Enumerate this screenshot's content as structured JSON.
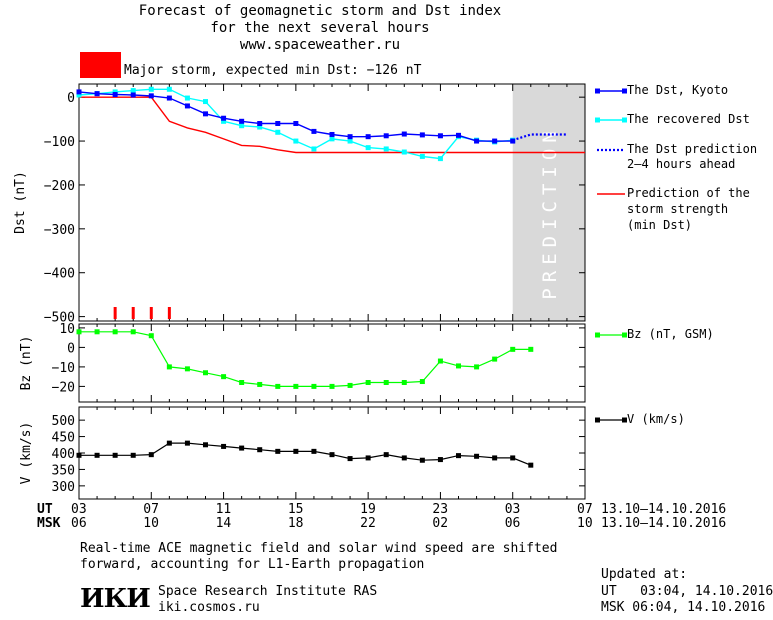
{
  "header": {
    "title_line1": "Forecast of geomagnetic storm and Dst index",
    "title_line2": "for the next several hours",
    "url": "www.spaceweather.ru",
    "storm_label": "Major storm, expected min Dst: −126 nT",
    "storm_color": "#ff0000"
  },
  "legend": {
    "dst_kyoto": "The Dst, Kyoto",
    "recovered": "The recovered Dst",
    "prediction_line1": "The Dst prediction",
    "prediction_line2": "2–4 hours ahead",
    "strength_line1": "Prediction of the",
    "strength_line2": "storm strength",
    "strength_line3": "(min Dst)",
    "bz": "Bz (nT, GSM)",
    "v": "V (km/s)"
  },
  "colors": {
    "dst": "#0000ff",
    "recovered": "#00ffff",
    "prediction": "#0000ff",
    "strength": "#ff0000",
    "bz": "#00ff00",
    "v": "#000000",
    "prediction_shade": "#d9d9d9",
    "prediction_text": "#ffffff"
  },
  "prediction_label": "PREDICTION",
  "time_axis": {
    "ut_label": "UT",
    "msk_label": "MSK",
    "ut_ticks": [
      "03",
      "07",
      "11",
      "15",
      "19",
      "23",
      "03",
      "07"
    ],
    "msk_ticks": [
      "06",
      "10",
      "14",
      "18",
      "22",
      "02",
      "06",
      "10"
    ],
    "date_range_ut": "13.10–14.10.2016",
    "date_range_msk": "13.10–14.10.2016"
  },
  "footer": {
    "note_line1": "Real-time ACE magnetic field and solar wind speed are shifted",
    "note_line2": "forward, accounting for L1-Earth propagation",
    "logo": "ИКИ",
    "institute": "Space Research Institute RAS",
    "site": "iki.cosmos.ru",
    "updated_label": "Updated at:",
    "updated_ut": "UT   03:04, 14.10.2016",
    "updated_msk": "MSK 06:04, 14.10.2016"
  },
  "chart_data": [
    {
      "type": "line",
      "ylabel": "Dst (nT)",
      "x_unit": "hours UT from 03:00 13.10.2016",
      "ylim": [
        -510,
        30
      ],
      "yticks": [
        0,
        -100,
        -200,
        -300,
        -400,
        -500
      ],
      "xlim": [
        0,
        28
      ],
      "prediction_start_x": 24,
      "series": [
        {
          "name": "The Dst, Kyoto",
          "x": [
            0,
            1,
            2,
            3,
            4,
            5,
            6,
            7,
            8,
            9,
            10,
            11,
            12,
            13,
            14,
            15,
            16,
            17,
            18,
            19,
            20,
            21,
            22,
            23,
            24
          ],
          "values": [
            12,
            8,
            6,
            5,
            3,
            -2,
            -20,
            -38,
            -48,
            -55,
            -60,
            -60,
            -60,
            -78,
            -85,
            -90,
            -90,
            -88,
            -84,
            -86,
            -88,
            -87,
            -100,
            -100,
            -100
          ]
        },
        {
          "name": "The recovered Dst",
          "x": [
            0,
            1,
            2,
            3,
            4,
            5,
            6,
            7,
            8,
            9,
            10,
            11,
            12,
            13,
            14,
            15,
            16,
            17,
            18,
            19,
            20,
            21,
            22,
            23,
            24
          ],
          "values": [
            5,
            8,
            12,
            15,
            18,
            18,
            -2,
            -10,
            -55,
            -65,
            -68,
            -80,
            -100,
            -118,
            -95,
            -100,
            -115,
            -118,
            -125,
            -135,
            -140,
            -90,
            -98,
            -102,
            -98
          ]
        },
        {
          "name": "The Dst prediction 2–4 hours ahead",
          "x": [
            24,
            25,
            26,
            27
          ],
          "values": [
            -98,
            -85,
            -85,
            -85
          ]
        },
        {
          "name": "Prediction of the storm strength (min Dst)",
          "x": [
            0,
            1,
            2,
            3,
            4,
            5,
            6,
            7,
            8,
            9,
            10,
            11,
            12,
            13,
            14,
            15,
            16,
            17,
            18,
            19,
            20,
            21,
            22,
            23,
            24,
            25,
            26,
            27,
            28
          ],
          "values": [
            0,
            0,
            0,
            0,
            0,
            -55,
            -70,
            -80,
            -95,
            -110,
            -112,
            -120,
            -126,
            -126,
            -126,
            -126,
            -126,
            -126,
            -126,
            -126,
            -126,
            -126,
            -126,
            -126,
            -126,
            -126,
            -126,
            -126,
            -126
          ]
        }
      ],
      "storm_markers_x": [
        2,
        3,
        4,
        5
      ]
    },
    {
      "type": "line",
      "ylabel": "Bz (nT)",
      "ylim": [
        -28,
        12
      ],
      "yticks": [
        10,
        0,
        -10,
        -20
      ],
      "xlim": [
        0,
        28
      ],
      "series": [
        {
          "name": "Bz (nT, GSM)",
          "x": [
            0,
            1,
            2,
            3,
            4,
            5,
            6,
            7,
            8,
            9,
            10,
            11,
            12,
            13,
            14,
            15,
            16,
            17,
            18,
            19,
            20,
            21,
            22,
            23,
            24,
            25
          ],
          "values": [
            8,
            8,
            8,
            8,
            6,
            -10,
            -11,
            -13,
            -15,
            -18,
            -19,
            -20,
            -20,
            -20,
            -20,
            -19.5,
            -18,
            -18,
            -18,
            -17.5,
            -7,
            -9.5,
            -10,
            -6,
            -1,
            -1
          ]
        }
      ]
    },
    {
      "type": "line",
      "ylabel": "V (km/s)",
      "ylim": [
        260,
        540
      ],
      "yticks": [
        500,
        450,
        400,
        350,
        300
      ],
      "xlim": [
        0,
        28
      ],
      "series": [
        {
          "name": "V (km/s)",
          "x": [
            0,
            1,
            2,
            3,
            4,
            5,
            6,
            7,
            8,
            9,
            10,
            11,
            12,
            13,
            14,
            15,
            16,
            17,
            18,
            19,
            20,
            21,
            22,
            23,
            24,
            25
          ],
          "values": [
            393,
            393,
            393,
            393,
            395,
            430,
            430,
            425,
            420,
            415,
            410,
            405,
            405,
            405,
            395,
            383,
            385,
            395,
            385,
            378,
            380,
            392,
            390,
            385,
            385,
            363
          ]
        }
      ]
    }
  ]
}
